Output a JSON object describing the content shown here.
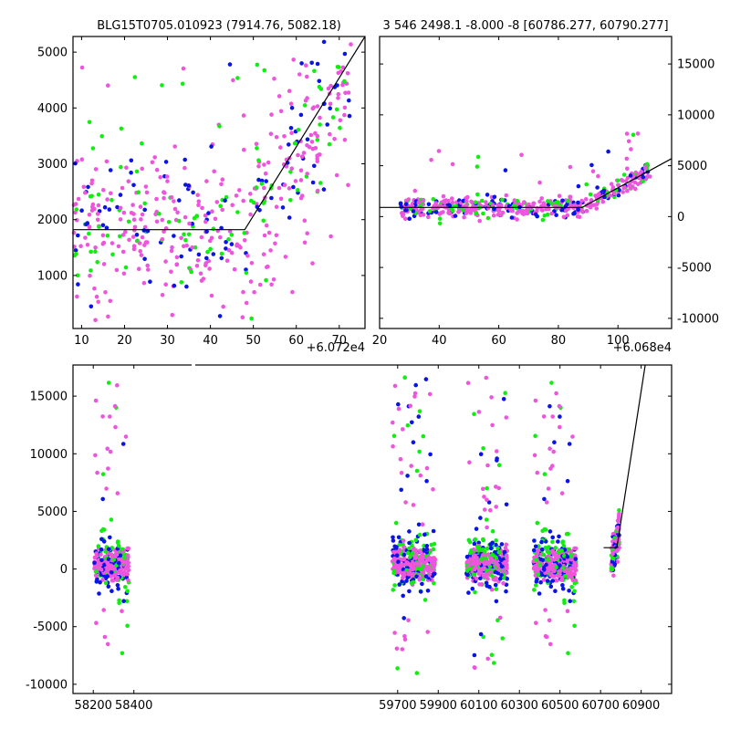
{
  "colors": {
    "magenta": "#ee55dd",
    "blue": "#0a14e6",
    "green": "#10ee10",
    "line": "#000000"
  },
  "chart_data": [
    {
      "id": "topleft",
      "type": "scatter",
      "title": "BLG15T0705.010923 (7914.76, 5082.18)",
      "x_offset_label": "+6.072e4",
      "xlim": [
        8,
        76
      ],
      "ylim": [
        50,
        5280
      ],
      "xticks": [
        "10",
        "20",
        "30",
        "40",
        "50",
        "60",
        "70"
      ],
      "yticks": [
        "1000",
        "2000",
        "3000",
        "4000",
        "5000"
      ],
      "y_tick_side": "left",
      "model_line": [
        [
          8,
          1820
        ],
        [
          48,
          1820
        ],
        [
          76,
          5280
        ]
      ]
    },
    {
      "id": "topright",
      "type": "scatter",
      "title": "3 546 2498.1 -8.000 -8 [60786.277, 60790.277]",
      "x_offset_label": "+6.068e4",
      "xlim": [
        20,
        118
      ],
      "ylim": [
        -11000,
        17700
      ],
      "xticks": [
        "20",
        "40",
        "60",
        "80",
        "100"
      ],
      "yticks": [
        "-10000",
        "-5000",
        "0",
        "5000",
        "10000",
        "15000"
      ],
      "y_tick_side": "right",
      "model_line": [
        [
          20,
          900
        ],
        [
          88,
          900
        ],
        [
          118,
          5700
        ]
      ]
    },
    {
      "id": "bottom",
      "type": "scatter",
      "title": "",
      "xlim": [
        58100,
        61050
      ],
      "ylim": [
        -10800,
        17700
      ],
      "xticks": [
        "58200",
        "58400",
        "59700",
        "59900",
        "60100",
        "60300",
        "60500",
        "60700",
        "60900"
      ],
      "yticks": [
        "-10000",
        "-5000",
        "0",
        "5000",
        "10000",
        "15000"
      ],
      "y_tick_side": "left",
      "segments": [
        {
          "center": 58290,
          "width": 170,
          "n": 320
        },
        {
          "center": 59780,
          "width": 210,
          "n": 420
        },
        {
          "center": 60140,
          "width": 200,
          "n": 420
        },
        {
          "center": 60475,
          "width": 210,
          "n": 420
        },
        {
          "center": 60772,
          "width": 40,
          "n": 120
        }
      ],
      "model_line": [
        [
          60715,
          1850
        ],
        [
          60780,
          1850
        ],
        [
          60920,
          17700
        ]
      ]
    }
  ]
}
